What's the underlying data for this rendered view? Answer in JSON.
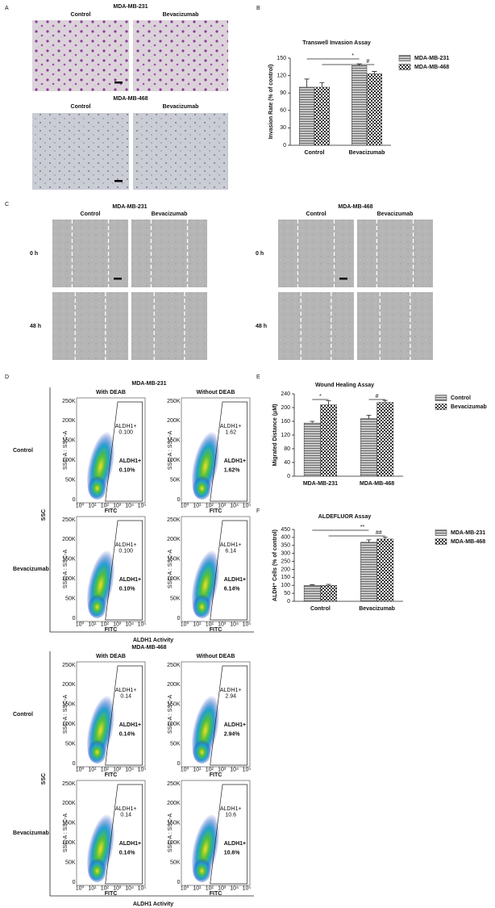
{
  "panel_labels": [
    "A",
    "B",
    "C",
    "D",
    "E",
    "F"
  ],
  "panel_a": {
    "rows": [
      {
        "title": "MDA-MB-231",
        "columns": [
          "Control",
          "Bevacizumab"
        ]
      },
      {
        "title": "MDA-MB-468",
        "columns": [
          "Control",
          "Bevacizumab"
        ]
      }
    ]
  },
  "panel_c": {
    "groups": [
      {
        "title": "MDA-MB-231",
        "columns": [
          "Control",
          "Bevacizumab"
        ]
      },
      {
        "title": "MDA-MB-468",
        "columns": [
          "Control",
          "Bevacizumab"
        ]
      }
    ],
    "rows": [
      "0 h",
      "48 h"
    ]
  },
  "flow_axes": {
    "yticks": [
      "250K",
      "200K",
      "150K",
      "100K",
      "50K",
      "0"
    ],
    "xticks": [
      "10⁰",
      "10¹",
      "10²",
      "10³",
      "10⁴",
      "10⁵"
    ],
    "y_axis": "SSC-A : SSC-A",
    "x_axis": "FITC"
  },
  "panel_d": {
    "blocks": [
      {
        "title": "MDA-MB-231",
        "columns": [
          "With DEAB",
          "Without DEAB"
        ],
        "rows": [
          "Control",
          "Bevacizumab"
        ],
        "y_label": "SSC",
        "x_label": "ALDH1 Activity",
        "plots": [
          {
            "gate": "ALDH1+",
            "gate_value": "0.100",
            "big_label": "ALDH1+",
            "big_value": "0.10%"
          },
          {
            "gate": "ALDH1+",
            "gate_value": "1.62",
            "big_label": "ALDH1+",
            "big_value": "1.62%"
          },
          {
            "gate": "ALDH1+",
            "gate_value": "0.100",
            "big_label": "ALDH1+",
            "big_value": "0.10%"
          },
          {
            "gate": "ALDH1+",
            "gate_value": "6.14",
            "big_label": "ALDH1+",
            "big_value": "6.14%"
          }
        ]
      },
      {
        "title": "MDA-MB-468",
        "columns": [
          "With DEAB",
          "Without DEAB"
        ],
        "rows": [
          "Control",
          "Bevacizumab"
        ],
        "y_label": "SSC",
        "x_label": "ALDH1 Activity",
        "plots": [
          {
            "gate": "ALDH1+",
            "gate_value": "0.14",
            "big_label": "ALDH1+",
            "big_value": "0.14%"
          },
          {
            "gate": "ALDH1+",
            "gate_value": "2.94",
            "big_label": "ALDH1+",
            "big_value": "2.94%"
          },
          {
            "gate": "ALDH1+",
            "gate_value": "0.14",
            "big_label": "ALDH1+",
            "big_value": "0.14%"
          },
          {
            "gate": "ALDH1+",
            "gate_value": "10.6",
            "big_label": "ALDH1+",
            "big_value": "10.6%"
          }
        ]
      }
    ]
  },
  "chart_data": [
    {
      "type": "bar",
      "title": "Transwell Invasion Assay",
      "ylabel": "Invasion Rate (% of control)",
      "categories": [
        "Control",
        "Bevacizumab"
      ],
      "series": [
        {
          "name": "MDA-MB-231",
          "color": "#9a9a9a",
          "pattern": "stripes",
          "values": [
            100,
            137
          ],
          "errors": [
            14,
            3
          ]
        },
        {
          "name": "MDA-MB-468",
          "color": "#9a9a9a",
          "pattern": "checks",
          "values": [
            100,
            123
          ],
          "errors": [
            8,
            4
          ]
        }
      ],
      "ylim": [
        0,
        150
      ],
      "yticks": [
        0,
        30,
        60,
        90,
        120,
        150
      ],
      "annotations": [
        "*",
        "#"
      ],
      "legend": "right"
    },
    {
      "type": "bar",
      "title": "Wound Healing Assay",
      "ylabel": "Migrated Distance (μM)",
      "categories": [
        "MDA-MB-231",
        "MDA-MB-468"
      ],
      "series": [
        {
          "name": "Control",
          "color": "#9a9a9a",
          "pattern": "stripes",
          "values": [
            155,
            168
          ],
          "errors": [
            5,
            10
          ]
        },
        {
          "name": "Bevacizumab",
          "color": "#9a9a9a",
          "pattern": "checks",
          "values": [
            208,
            215
          ],
          "errors": [
            12,
            6
          ]
        }
      ],
      "ylim": [
        0,
        240
      ],
      "yticks": [
        0,
        40,
        80,
        120,
        160,
        200,
        240
      ],
      "annotations": [
        "*",
        "#"
      ],
      "legend": "right"
    },
    {
      "type": "bar",
      "title": "ALDEFLUOR Assay",
      "ylabel": "ALDH⁺ Cells (% of control)",
      "categories": [
        "Control",
        "Bevacizumab"
      ],
      "series": [
        {
          "name": "MDA-MB-231",
          "color": "#9a9a9a",
          "pattern": "stripes",
          "values": [
            100,
            370
          ],
          "errors": [
            4,
            15
          ]
        },
        {
          "name": "MDA-MB-468",
          "color": "#9a9a9a",
          "pattern": "checks",
          "values": [
            100,
            390
          ],
          "errors": [
            6,
            12
          ]
        }
      ],
      "ylim": [
        0,
        450
      ],
      "yticks": [
        0,
        50,
        100,
        150,
        200,
        250,
        300,
        350,
        400,
        450
      ],
      "annotations": [
        "**",
        "##"
      ],
      "legend": "right"
    }
  ]
}
